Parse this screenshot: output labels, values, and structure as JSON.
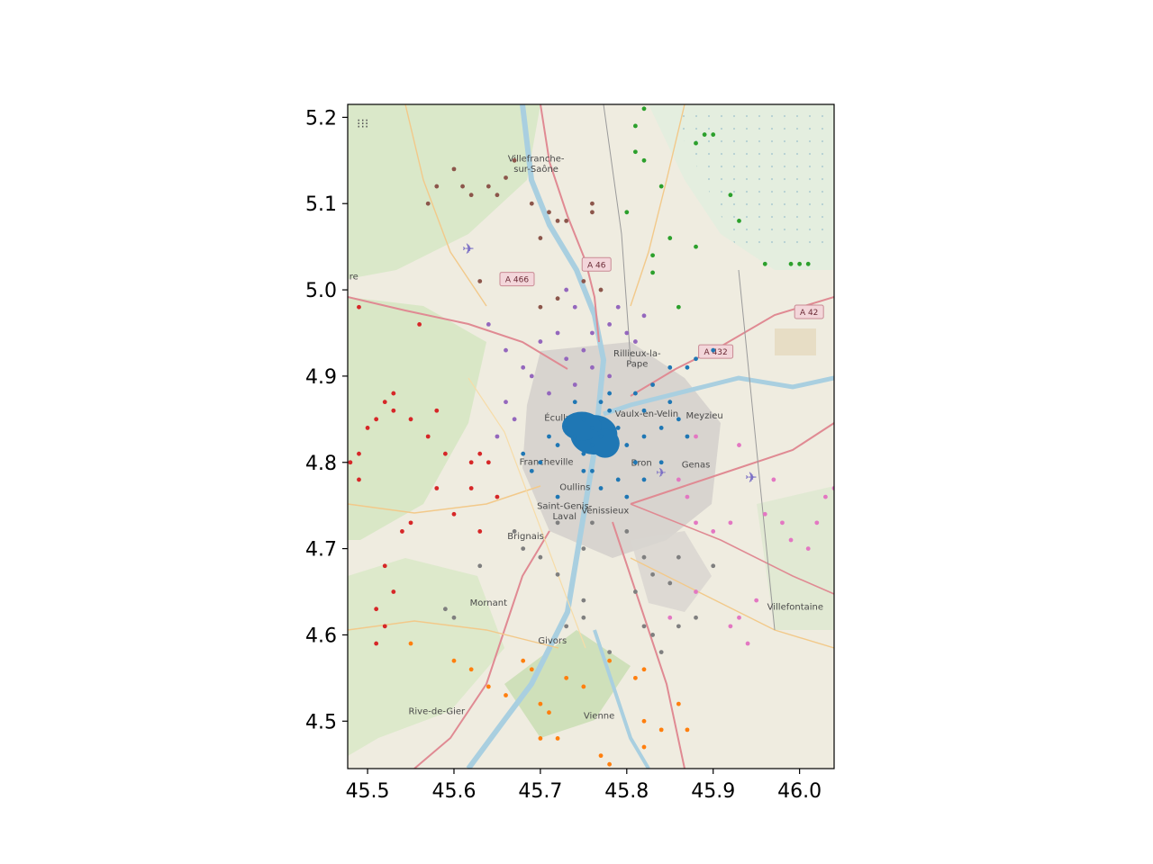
{
  "chart_data": {
    "type": "scatter",
    "title": "",
    "xlabel": "",
    "ylabel": "",
    "xlim": [
      45.477,
      46.04
    ],
    "ylim": [
      4.445,
      5.215
    ],
    "xticks": [
      45.5,
      45.6,
      45.7,
      45.8,
      45.9,
      46.0
    ],
    "yticks": [
      4.5,
      4.6,
      4.7,
      4.8,
      4.9,
      5.0,
      5.1,
      5.2
    ],
    "xtick_labels": [
      "45.5",
      "45.6",
      "45.7",
      "45.8",
      "45.9",
      "46.0"
    ],
    "ytick_labels": [
      "4.5",
      "4.6",
      "4.7",
      "4.8",
      "4.9",
      "5.0",
      "5.1",
      "5.2"
    ],
    "grid": false,
    "legend": "none",
    "background": "OpenStreetMap tile basemap",
    "series": [
      {
        "color": "#1f77b4",
        "points": [
          [
            45.76,
            4.84
          ],
          [
            45.77,
            4.83
          ],
          [
            45.75,
            4.85
          ],
          [
            45.78,
            4.86
          ],
          [
            45.76,
            4.82
          ],
          [
            45.74,
            4.83
          ],
          [
            45.77,
            4.85
          ],
          [
            45.79,
            4.84
          ],
          [
            45.73,
            4.84
          ],
          [
            45.75,
            4.81
          ],
          [
            45.72,
            4.82
          ],
          [
            45.71,
            4.83
          ],
          [
            45.8,
            4.82
          ],
          [
            45.82,
            4.83
          ],
          [
            45.84,
            4.84
          ],
          [
            45.86,
            4.85
          ],
          [
            45.87,
            4.83
          ],
          [
            45.81,
            4.8
          ],
          [
            45.79,
            4.78
          ],
          [
            45.77,
            4.77
          ],
          [
            45.75,
            4.79
          ],
          [
            45.7,
            4.8
          ],
          [
            45.68,
            4.81
          ],
          [
            45.72,
            4.76
          ],
          [
            45.69,
            4.79
          ],
          [
            45.82,
            4.78
          ],
          [
            45.84,
            4.8
          ],
          [
            45.83,
            4.89
          ],
          [
            45.85,
            4.91
          ],
          [
            45.88,
            4.92
          ],
          [
            45.9,
            4.93
          ],
          [
            45.81,
            4.88
          ],
          [
            45.87,
            4.91
          ],
          [
            45.77,
            4.87
          ],
          [
            45.78,
            4.88
          ],
          [
            45.74,
            4.87
          ],
          [
            45.82,
            4.86
          ],
          [
            45.85,
            4.87
          ],
          [
            45.8,
            4.76
          ],
          [
            45.76,
            4.79
          ]
        ]
      },
      {
        "color": "#ff7f0e",
        "points": [
          [
            45.55,
            4.59
          ],
          [
            45.62,
            4.56
          ],
          [
            45.64,
            4.54
          ],
          [
            45.66,
            4.53
          ],
          [
            45.7,
            4.52
          ],
          [
            45.71,
            4.51
          ],
          [
            45.68,
            4.57
          ],
          [
            45.73,
            4.55
          ],
          [
            45.75,
            4.54
          ],
          [
            45.72,
            4.48
          ],
          [
            45.7,
            4.48
          ],
          [
            45.77,
            4.46
          ],
          [
            45.78,
            4.45
          ],
          [
            45.82,
            4.5
          ],
          [
            45.82,
            4.47
          ],
          [
            45.84,
            4.49
          ],
          [
            45.86,
            4.52
          ],
          [
            45.87,
            4.49
          ],
          [
            45.82,
            4.56
          ],
          [
            45.81,
            4.55
          ],
          [
            45.78,
            4.57
          ],
          [
            45.69,
            4.56
          ],
          [
            45.6,
            4.57
          ]
        ]
      },
      {
        "color": "#2ca02c",
        "points": [
          [
            45.82,
            5.21
          ],
          [
            45.81,
            5.19
          ],
          [
            45.81,
            5.16
          ],
          [
            45.82,
            5.15
          ],
          [
            45.88,
            5.17
          ],
          [
            45.89,
            5.18
          ],
          [
            45.9,
            5.18
          ],
          [
            45.84,
            5.12
          ],
          [
            45.8,
            5.09
          ],
          [
            45.85,
            5.06
          ],
          [
            45.83,
            5.04
          ],
          [
            45.88,
            5.05
          ],
          [
            45.86,
            4.98
          ],
          [
            45.83,
            5.02
          ],
          [
            45.96,
            5.03
          ],
          [
            45.99,
            5.03
          ],
          [
            46.0,
            5.03
          ],
          [
            46.01,
            5.03
          ],
          [
            45.93,
            5.08
          ],
          [
            45.92,
            5.11
          ]
        ]
      },
      {
        "color": "#d62728",
        "points": [
          [
            45.52,
            4.87
          ],
          [
            45.53,
            4.88
          ],
          [
            45.53,
            4.86
          ],
          [
            45.51,
            4.85
          ],
          [
            45.5,
            4.84
          ],
          [
            45.49,
            4.81
          ],
          [
            45.48,
            4.8
          ],
          [
            45.47,
            4.79
          ],
          [
            45.49,
            4.78
          ],
          [
            45.55,
            4.85
          ],
          [
            45.58,
            4.86
          ],
          [
            45.57,
            4.83
          ],
          [
            45.59,
            4.81
          ],
          [
            45.58,
            4.77
          ],
          [
            45.6,
            4.74
          ],
          [
            45.62,
            4.77
          ],
          [
            45.63,
            4.81
          ],
          [
            45.64,
            4.8
          ],
          [
            45.65,
            4.76
          ],
          [
            45.63,
            4.72
          ],
          [
            45.55,
            4.73
          ],
          [
            45.54,
            4.72
          ],
          [
            45.52,
            4.68
          ],
          [
            45.53,
            4.65
          ],
          [
            45.51,
            4.63
          ],
          [
            45.52,
            4.61
          ],
          [
            45.51,
            4.59
          ],
          [
            45.49,
            4.98
          ],
          [
            45.47,
            4.99
          ],
          [
            45.56,
            4.96
          ],
          [
            45.62,
            4.8
          ]
        ]
      },
      {
        "color": "#9467bd",
        "points": [
          [
            45.74,
            4.89
          ],
          [
            45.76,
            4.91
          ],
          [
            45.78,
            4.9
          ],
          [
            45.75,
            4.93
          ],
          [
            45.73,
            4.92
          ],
          [
            45.71,
            4.88
          ],
          [
            45.69,
            4.9
          ],
          [
            45.68,
            4.91
          ],
          [
            45.66,
            4.93
          ],
          [
            45.7,
            4.94
          ],
          [
            45.72,
            4.95
          ],
          [
            45.78,
            4.96
          ],
          [
            45.79,
            4.98
          ],
          [
            45.8,
            4.95
          ],
          [
            45.82,
            4.97
          ],
          [
            45.81,
            4.94
          ],
          [
            45.74,
            4.98
          ],
          [
            45.73,
            5.0
          ],
          [
            45.64,
            4.96
          ],
          [
            45.66,
            4.87
          ],
          [
            45.67,
            4.85
          ],
          [
            45.65,
            4.83
          ],
          [
            45.76,
            4.95
          ]
        ]
      },
      {
        "color": "#8c564b",
        "points": [
          [
            45.6,
            5.14
          ],
          [
            45.61,
            5.12
          ],
          [
            45.62,
            5.11
          ],
          [
            45.64,
            5.12
          ],
          [
            45.65,
            5.11
          ],
          [
            45.66,
            5.13
          ],
          [
            45.71,
            5.09
          ],
          [
            45.72,
            5.08
          ],
          [
            45.73,
            5.08
          ],
          [
            45.7,
            5.06
          ],
          [
            45.69,
            5.1
          ],
          [
            45.76,
            5.09
          ],
          [
            45.76,
            5.1
          ],
          [
            45.67,
            5.15
          ],
          [
            45.58,
            5.12
          ],
          [
            45.7,
            4.98
          ],
          [
            45.75,
            5.01
          ],
          [
            45.72,
            4.99
          ],
          [
            45.77,
            5.0
          ],
          [
            45.7,
            5.22
          ],
          [
            45.57,
            5.1
          ],
          [
            45.63,
            5.01
          ]
        ]
      },
      {
        "color": "#e377c2",
        "points": [
          [
            45.88,
            4.83
          ],
          [
            45.86,
            4.78
          ],
          [
            45.88,
            4.73
          ],
          [
            45.9,
            4.72
          ],
          [
            45.92,
            4.73
          ],
          [
            45.96,
            4.74
          ],
          [
            45.98,
            4.73
          ],
          [
            45.99,
            4.71
          ],
          [
            46.02,
            4.73
          ],
          [
            46.03,
            4.76
          ],
          [
            46.04,
            4.77
          ],
          [
            45.95,
            4.64
          ],
          [
            45.92,
            4.61
          ],
          [
            45.93,
            4.62
          ],
          [
            45.94,
            4.59
          ],
          [
            45.85,
            4.62
          ],
          [
            45.88,
            4.65
          ],
          [
            45.97,
            4.78
          ],
          [
            45.93,
            4.82
          ],
          [
            46.01,
            4.7
          ],
          [
            45.87,
            4.76
          ]
        ]
      },
      {
        "color": "#7f7f7f",
        "points": [
          [
            45.68,
            4.7
          ],
          [
            45.67,
            4.72
          ],
          [
            45.7,
            4.69
          ],
          [
            45.72,
            4.67
          ],
          [
            45.75,
            4.7
          ],
          [
            45.76,
            4.73
          ],
          [
            45.72,
            4.73
          ],
          [
            45.82,
            4.69
          ],
          [
            45.83,
            4.67
          ],
          [
            45.85,
            4.66
          ],
          [
            45.82,
            4.61
          ],
          [
            45.83,
            4.6
          ],
          [
            45.86,
            4.61
          ],
          [
            45.88,
            4.62
          ],
          [
            45.84,
            4.58
          ],
          [
            45.75,
            4.62
          ],
          [
            45.75,
            4.64
          ],
          [
            45.73,
            4.61
          ],
          [
            45.78,
            4.58
          ],
          [
            45.81,
            4.65
          ],
          [
            45.8,
            4.72
          ],
          [
            45.86,
            4.69
          ],
          [
            45.9,
            4.68
          ],
          [
            45.63,
            4.68
          ],
          [
            45.6,
            4.62
          ],
          [
            45.59,
            4.63
          ]
        ]
      }
    ],
    "map_labels": [
      {
        "text": "Villefranche-",
        "x": 45.695,
        "y": 5.149
      },
      {
        "text": "sur-Saône",
        "x": 45.695,
        "y": 5.137
      },
      {
        "text": "Rillieux-la-",
        "x": 45.812,
        "y": 4.923
      },
      {
        "text": "Pape",
        "x": 45.812,
        "y": 4.911
      },
      {
        "text": "Écully",
        "x": 45.72,
        "y": 4.848
      },
      {
        "text": "Vaulx-en-Velin",
        "x": 45.823,
        "y": 4.853
      },
      {
        "text": "Meyzieu",
        "x": 45.89,
        "y": 4.851
      },
      {
        "text": "Francheville",
        "x": 45.707,
        "y": 4.797
      },
      {
        "text": "Bron",
        "x": 45.817,
        "y": 4.796
      },
      {
        "text": "Genas",
        "x": 45.88,
        "y": 4.794
      },
      {
        "text": "Oullins",
        "x": 45.74,
        "y": 4.768
      },
      {
        "text": "Saint-Genis-",
        "x": 45.728,
        "y": 4.746
      },
      {
        "text": "Vénissieux",
        "x": 45.775,
        "y": 4.741
      },
      {
        "text": "Laval",
        "x": 45.728,
        "y": 4.734
      },
      {
        "text": "Brignais",
        "x": 45.683,
        "y": 4.711
      },
      {
        "text": "Mornant",
        "x": 45.64,
        "y": 4.634
      },
      {
        "text": "Villefontaine",
        "x": 45.995,
        "y": 4.629
      },
      {
        "text": "Givors",
        "x": 45.714,
        "y": 4.59
      },
      {
        "text": "Rive-de-Gier",
        "x": 45.58,
        "y": 4.508
      },
      {
        "text": "Vienne",
        "x": 45.768,
        "y": 4.503
      },
      {
        "text": "re",
        "x": 45.484,
        "y": 5.012
      }
    ],
    "road_shields": [
      {
        "text": "A 466",
        "x": 45.673,
        "y": 5.012
      },
      {
        "text": "A 46",
        "x": 45.765,
        "y": 5.029
      },
      {
        "text": "A 432",
        "x": 45.903,
        "y": 4.928
      },
      {
        "text": "A 42",
        "x": 46.011,
        "y": 4.974
      }
    ]
  }
}
